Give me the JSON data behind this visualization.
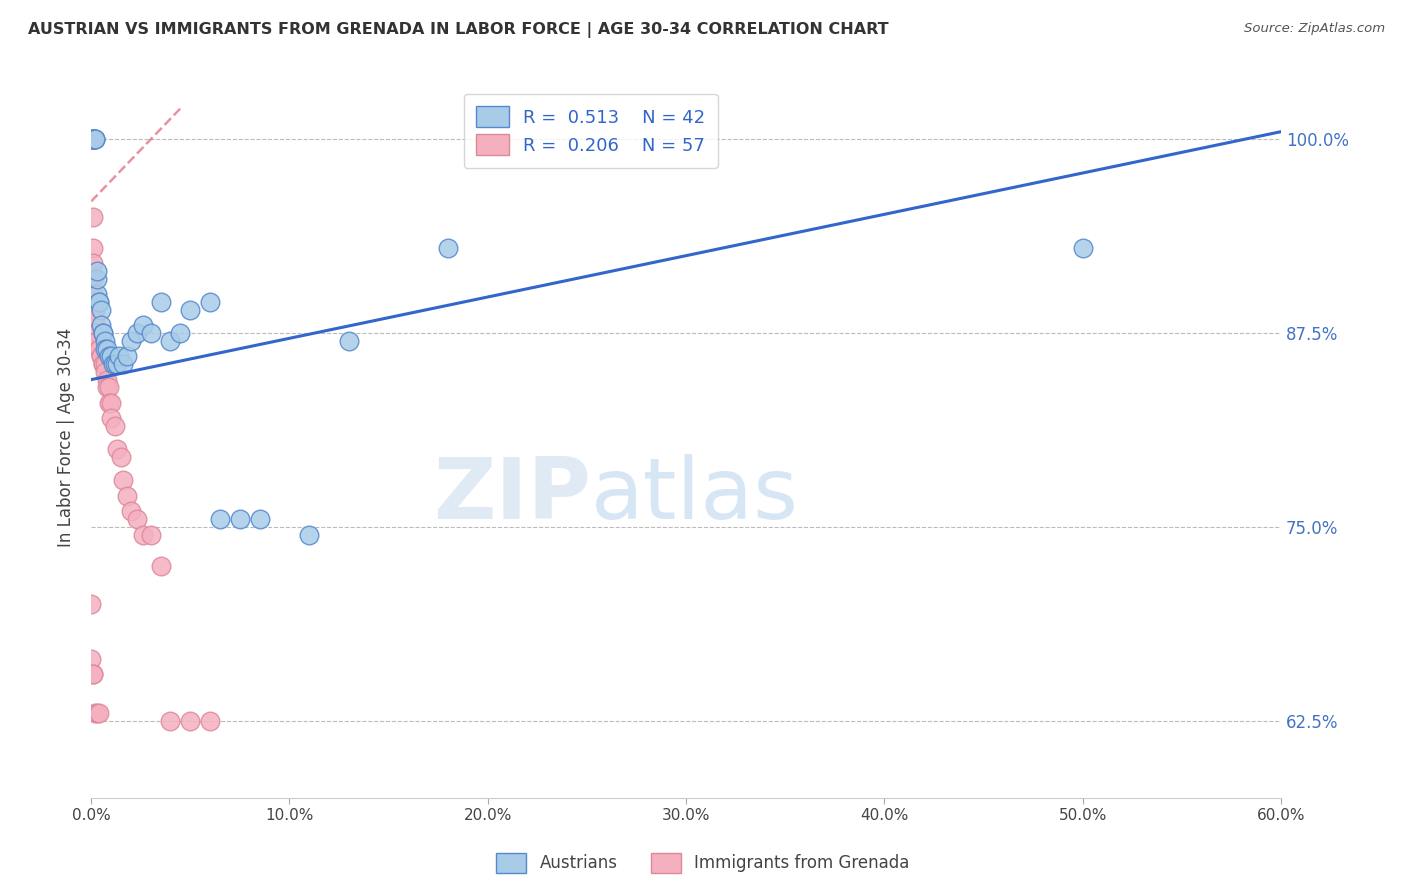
{
  "title": "AUSTRIAN VS IMMIGRANTS FROM GRENADA IN LABOR FORCE | AGE 30-34 CORRELATION CHART",
  "source": "Source: ZipAtlas.com",
  "ylabel": "In Labor Force | Age 30-34",
  "yticks": [
    0.625,
    0.75,
    0.875,
    1.0
  ],
  "ytick_labels": [
    "62.5%",
    "75.0%",
    "87.5%",
    "100.0%"
  ],
  "xmin": 0.0,
  "xmax": 0.6,
  "ymin": 0.575,
  "ymax": 1.04,
  "blue_color": "#A8CCE8",
  "pink_color": "#F5B0C0",
  "blue_line_color": "#3366CC",
  "pink_line_color": "#DD6677",
  "legend_blue_r": "R =  0.513",
  "legend_blue_n": "N = 42",
  "legend_pink_r": "R =  0.206",
  "legend_pink_n": "N = 57",
  "legend_austrians": "Austrians",
  "legend_grenada": "Immigrants from Grenada",
  "blue_x": [
    0.001,
    0.001,
    0.0015,
    0.002,
    0.002,
    0.002,
    0.003,
    0.003,
    0.003,
    0.004,
    0.004,
    0.005,
    0.005,
    0.006,
    0.006,
    0.007,
    0.007,
    0.008,
    0.009,
    0.01,
    0.011,
    0.012,
    0.013,
    0.014,
    0.016,
    0.018,
    0.02,
    0.023,
    0.026,
    0.03,
    0.035,
    0.04,
    0.045,
    0.05,
    0.06,
    0.065,
    0.075,
    0.085,
    0.11,
    0.13,
    0.18,
    0.5
  ],
  "blue_y": [
    1.0,
    1.0,
    1.0,
    1.0,
    1.0,
    1.0,
    0.9,
    0.91,
    0.915,
    0.895,
    0.895,
    0.89,
    0.88,
    0.875,
    0.875,
    0.87,
    0.865,
    0.865,
    0.86,
    0.86,
    0.855,
    0.855,
    0.855,
    0.86,
    0.855,
    0.86,
    0.87,
    0.875,
    0.88,
    0.875,
    0.895,
    0.87,
    0.875,
    0.89,
    0.895,
    0.755,
    0.755,
    0.755,
    0.745,
    0.87,
    0.93,
    0.93
  ],
  "pink_x": [
    0.0,
    0.0,
    0.0,
    0.0,
    0.0,
    0.0,
    0.001,
    0.001,
    0.001,
    0.001,
    0.001,
    0.001,
    0.001,
    0.001,
    0.002,
    0.002,
    0.002,
    0.002,
    0.002,
    0.003,
    0.003,
    0.003,
    0.003,
    0.004,
    0.004,
    0.005,
    0.005,
    0.006,
    0.006,
    0.007,
    0.007,
    0.008,
    0.008,
    0.009,
    0.009,
    0.01,
    0.01,
    0.012,
    0.013,
    0.015,
    0.016,
    0.018,
    0.02,
    0.023,
    0.026,
    0.03,
    0.035,
    0.04,
    0.05,
    0.06,
    0.0,
    0.0,
    0.001,
    0.001,
    0.002,
    0.003,
    0.004
  ],
  "pink_y": [
    1.0,
    1.0,
    1.0,
    1.0,
    1.0,
    1.0,
    1.0,
    0.95,
    0.93,
    0.92,
    0.91,
    0.91,
    0.9,
    0.895,
    0.895,
    0.89,
    0.885,
    0.875,
    0.875,
    0.875,
    0.875,
    0.87,
    0.87,
    0.865,
    0.865,
    0.86,
    0.86,
    0.855,
    0.855,
    0.855,
    0.85,
    0.845,
    0.84,
    0.84,
    0.83,
    0.83,
    0.82,
    0.815,
    0.8,
    0.795,
    0.78,
    0.77,
    0.76,
    0.755,
    0.745,
    0.745,
    0.725,
    0.625,
    0.625,
    0.625,
    0.7,
    0.665,
    0.655,
    0.655,
    0.63,
    0.63,
    0.63
  ],
  "blue_trend_x0": 0.0,
  "blue_trend_x1": 0.6,
  "blue_trend_y0": 0.845,
  "blue_trend_y1": 1.005,
  "pink_trend_x0": 0.0,
  "pink_trend_x1": 0.045,
  "pink_trend_y0": 0.96,
  "pink_trend_y1": 1.02
}
